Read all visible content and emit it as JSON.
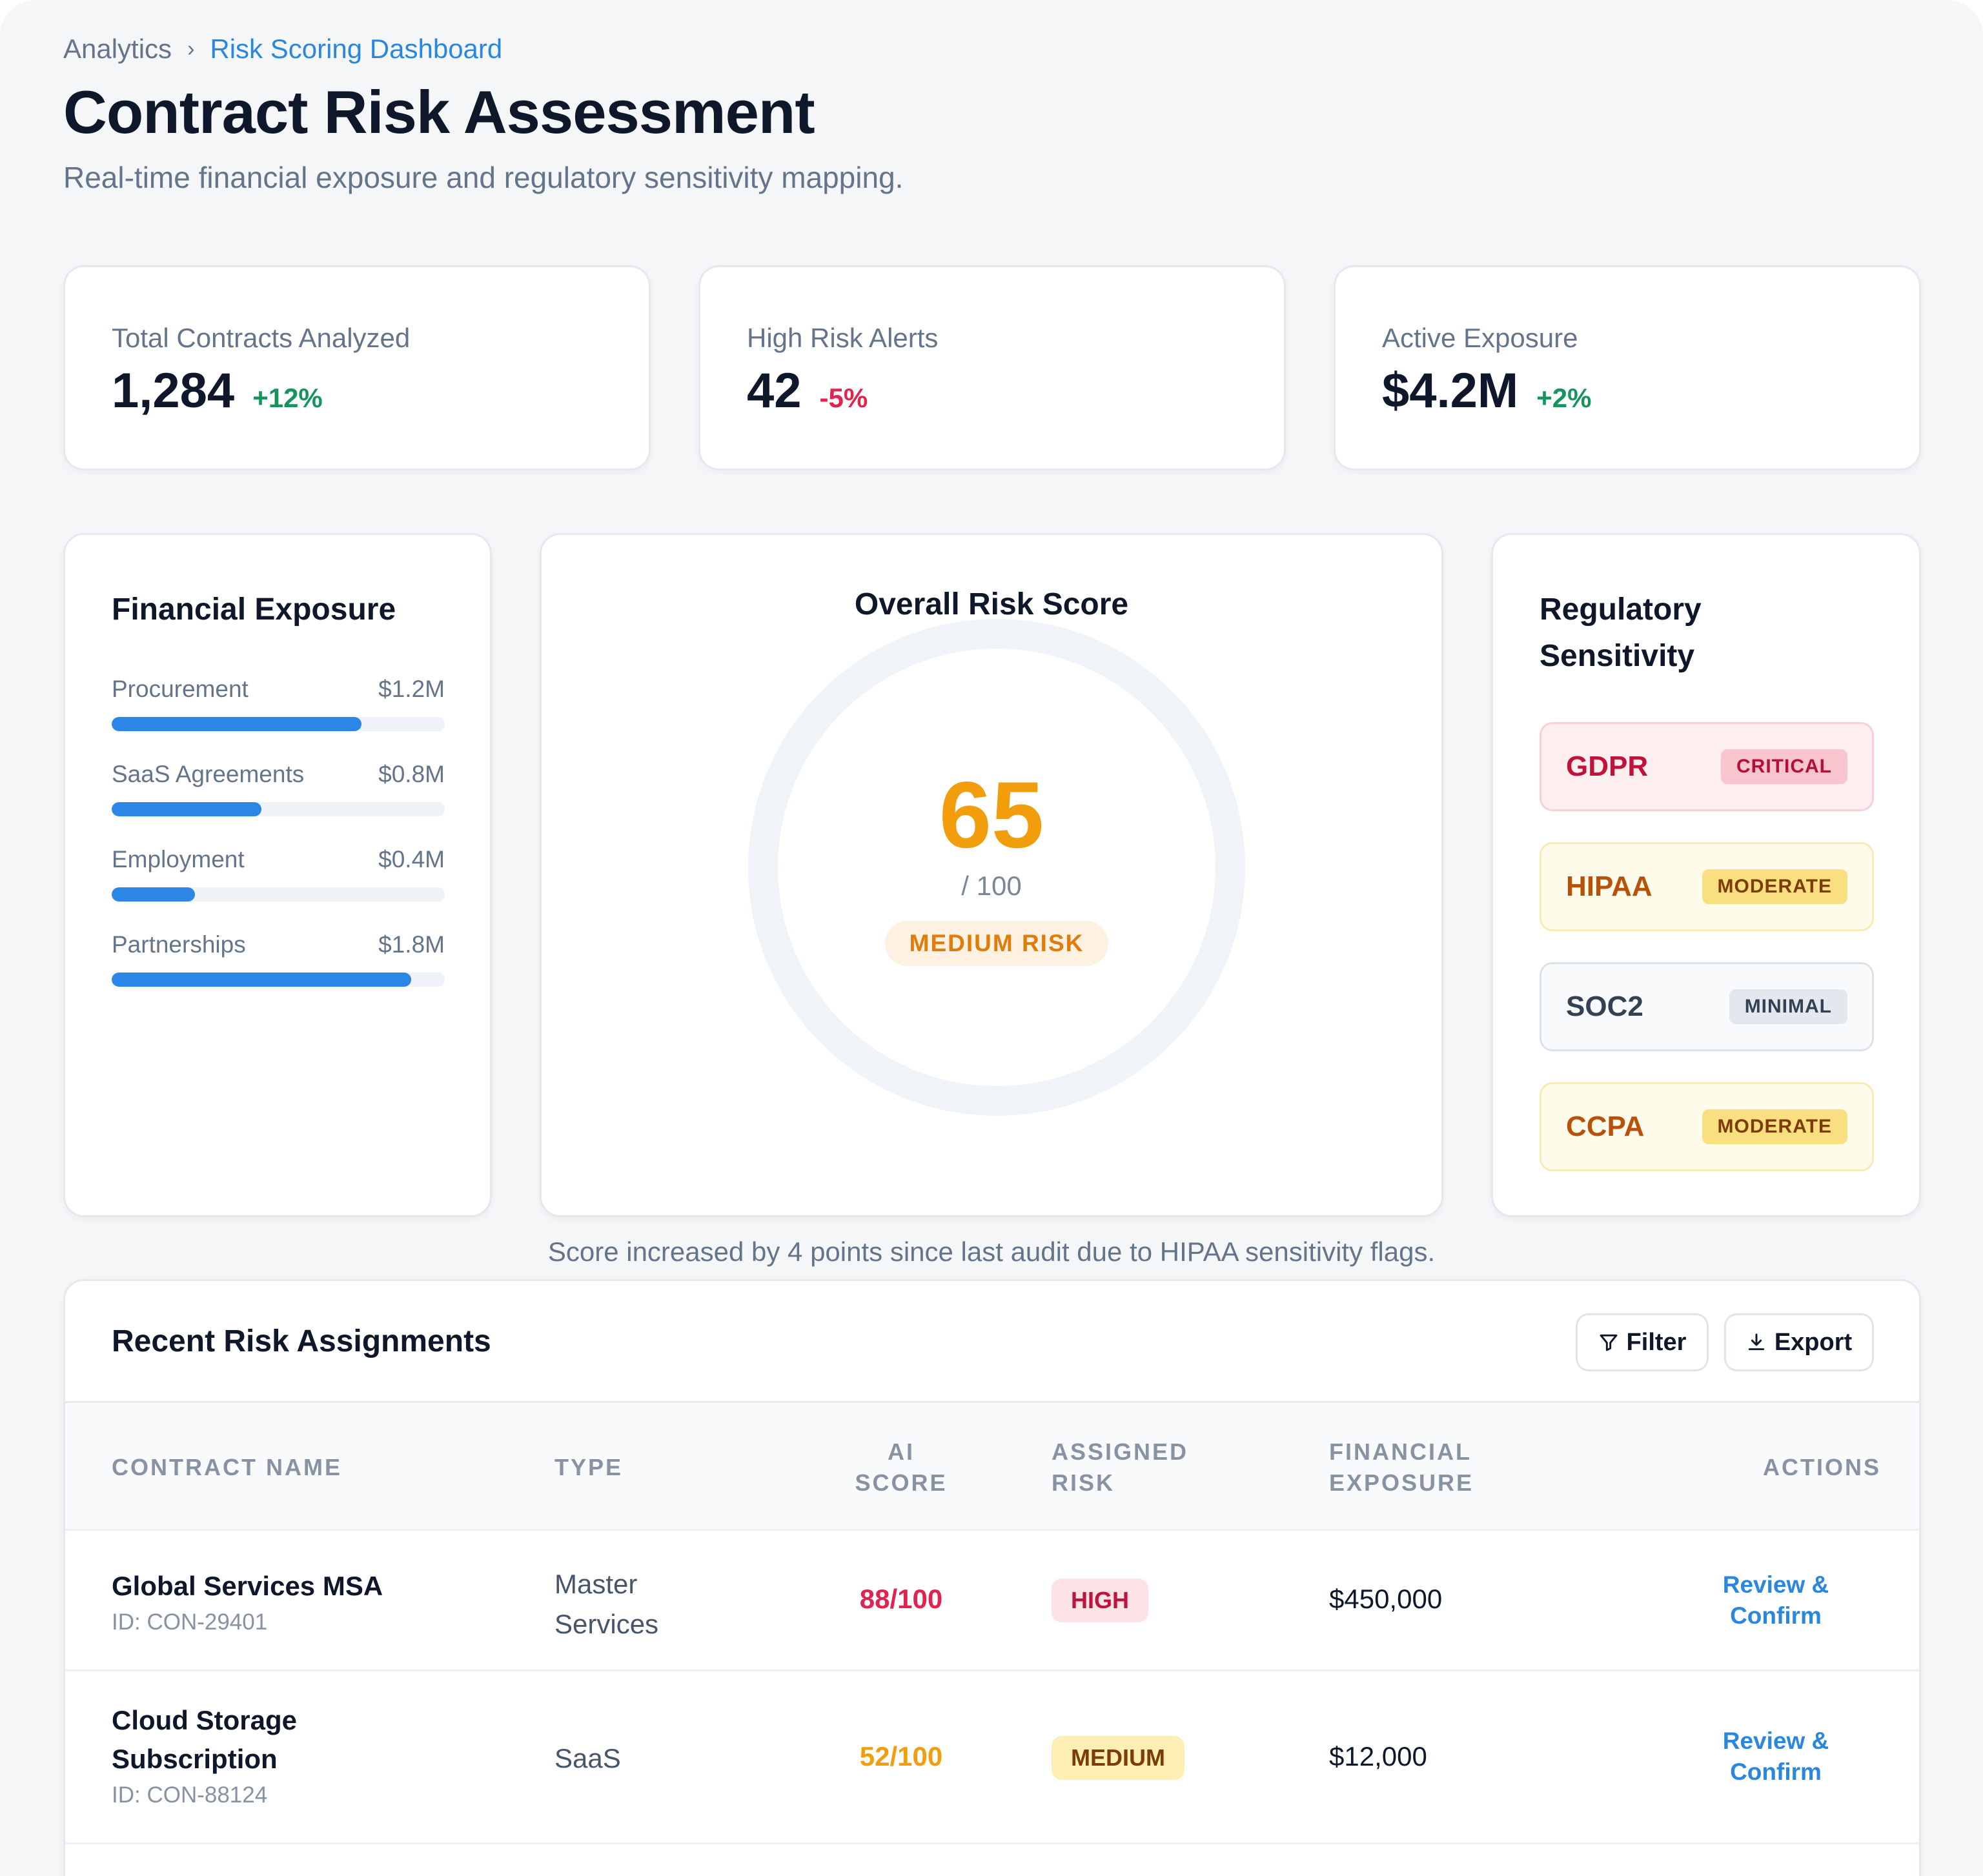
{
  "breadcrumb": {
    "parent": "Analytics",
    "separator": "›",
    "current": "Risk Scoring Dashboard"
  },
  "page": {
    "title": "Contract Risk Assessment",
    "subtitle": "Real-time financial exposure and regulatory sensitivity mapping."
  },
  "kpis": [
    {
      "label": "Total Contracts Analyzed",
      "value": "1,284",
      "delta": "+12%",
      "trend": "positive"
    },
    {
      "label": "High Risk Alerts",
      "value": "42",
      "delta": "-5%",
      "trend": "negative"
    },
    {
      "label": "Active Exposure",
      "value": "$4.2M",
      "delta": "+2%",
      "trend": "positive"
    }
  ],
  "financial": {
    "title": "Financial Exposure",
    "items": [
      {
        "label": "Procurement",
        "value": "$1.2M",
        "fraction": 0.75
      },
      {
        "label": "SaaS Agreements",
        "value": "$0.8M",
        "fraction": 0.45
      },
      {
        "label": "Employment",
        "value": "$0.4M",
        "fraction": 0.25
      },
      {
        "label": "Partnerships",
        "value": "$1.8M",
        "fraction": 0.9
      }
    ]
  },
  "risk_score": {
    "title": "Overall Risk Score",
    "score": "65",
    "max_label": "/ 100",
    "level": "MEDIUM RISK",
    "note": "Score increased by 4 points since last audit due to HIPAA sensitivity flags."
  },
  "regulatory": {
    "title": "Regulatory Sensitivity",
    "items": [
      {
        "name": "GDPR",
        "level": "CRITICAL"
      },
      {
        "name": "HIPAA",
        "level": "MODERATE"
      },
      {
        "name": "SOC2",
        "level": "MINIMAL"
      },
      {
        "name": "CCPA",
        "level": "MODERATE"
      }
    ]
  },
  "table": {
    "title": "Recent Risk Assignments",
    "filter_label": "Filter",
    "export_label": "Export",
    "columns": {
      "name": "CONTRACT NAME",
      "type": "TYPE",
      "score_line1": "AI",
      "score_line2": "SCORE",
      "risk_line1": "ASSIGNED",
      "risk_line2": "RISK",
      "exposure_line1": "FINANCIAL",
      "exposure_line2": "EXPOSURE",
      "actions": "ACTIONS"
    },
    "rows": [
      {
        "name": "Global Services MSA",
        "id": "ID: CON-29401",
        "type_line1": "Master",
        "type_line2": "Services",
        "score": "88/100",
        "risk": "HIGH",
        "exposure": "$450,000",
        "action_line1": "Review &",
        "action_line2": "Confirm"
      },
      {
        "name_line1": "Cloud Storage",
        "name_line2": "Subscription",
        "id": "ID: CON-88124",
        "type": "SaaS",
        "score": "52/100",
        "risk": "MEDIUM",
        "exposure": "$12,000",
        "action_line1": "Review &",
        "action_line2": "Confirm"
      }
    ]
  },
  "colors": {
    "accent": "#2b86de",
    "positive": "#15945c",
    "negative": "#e0234f",
    "medium": "#f29e0c",
    "high_score": "#e0234f"
  }
}
